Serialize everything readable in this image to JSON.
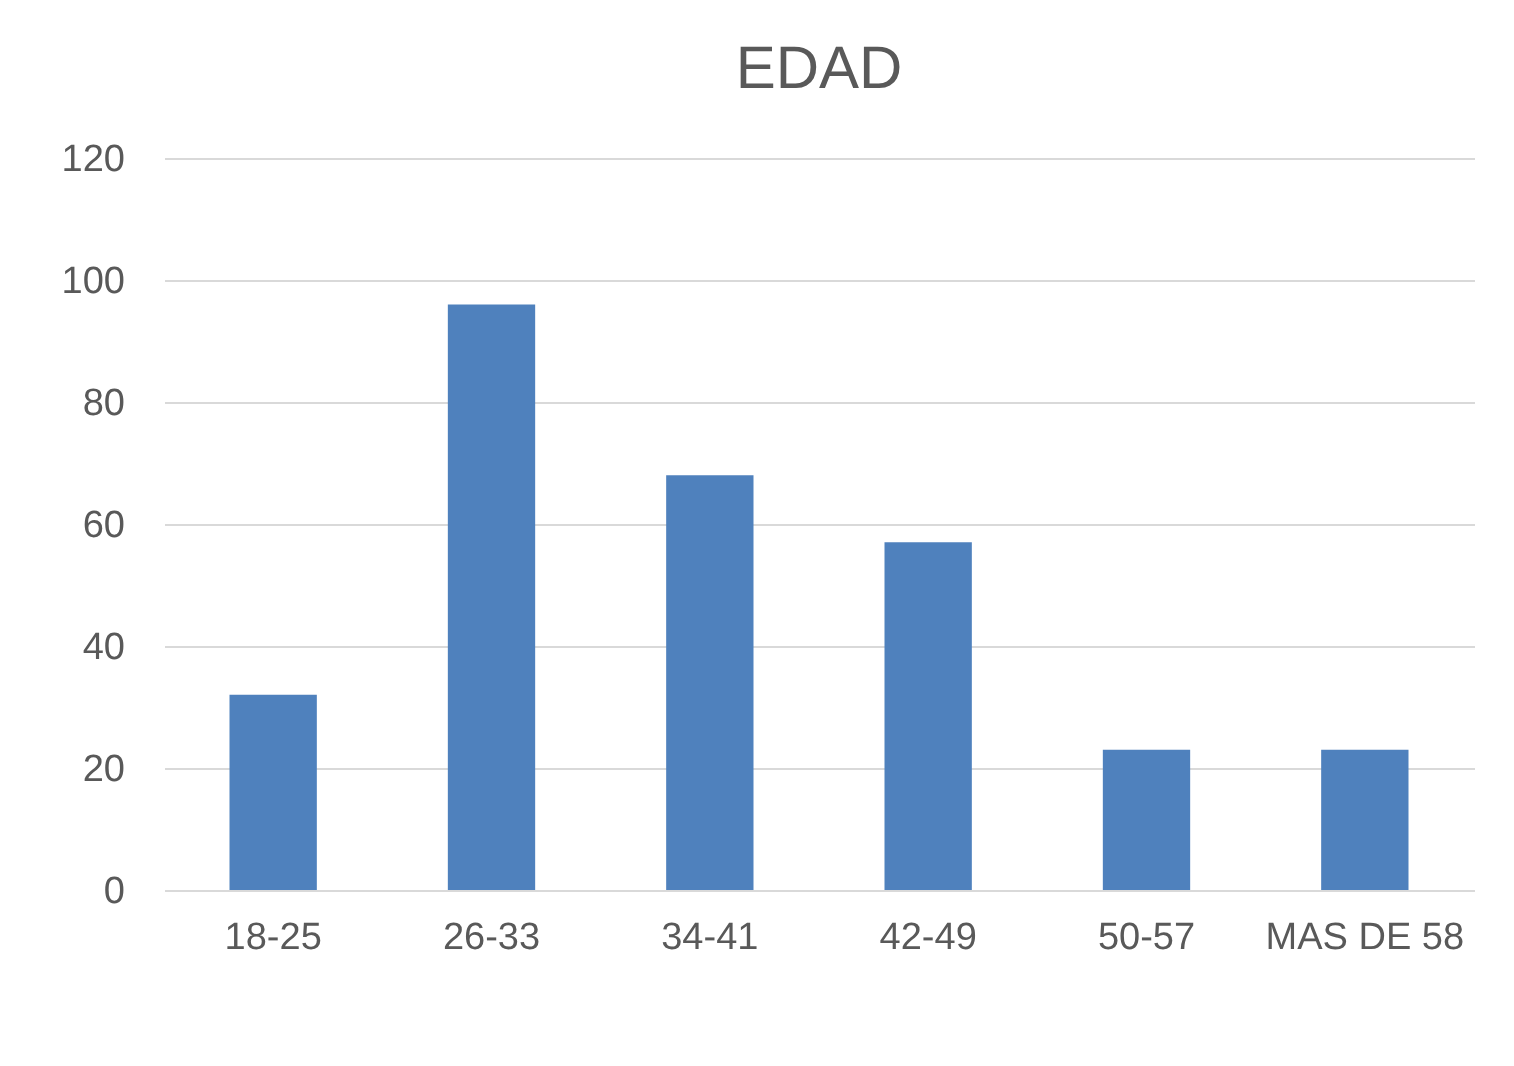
{
  "chart_data": {
    "type": "bar",
    "title": "EDAD",
    "categories": [
      "18-25",
      "26-33",
      "34-41",
      "42-49",
      "50-57",
      "MAS DE 58"
    ],
    "values": [
      32,
      96,
      68,
      57,
      23,
      23
    ],
    "color": "#4f81bd",
    "ylim": [
      0,
      120
    ],
    "yticks": [
      0,
      20,
      40,
      60,
      80,
      100,
      120
    ],
    "grid": "y"
  }
}
